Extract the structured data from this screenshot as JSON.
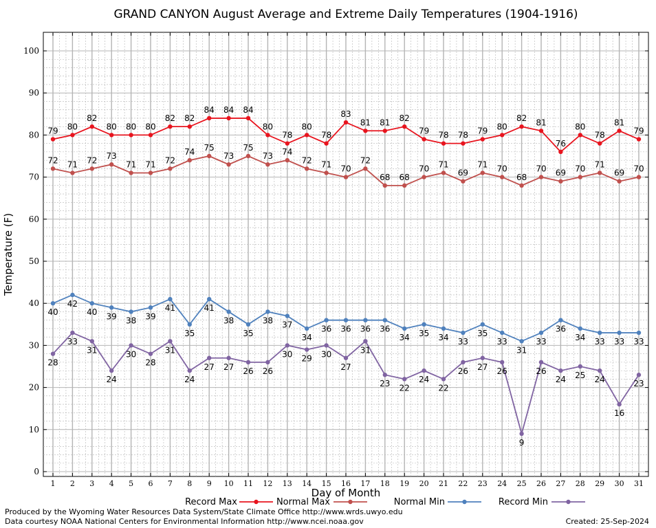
{
  "chart_data": {
    "type": "line",
    "title": "GRAND CANYON August Average and Extreme Daily Temperatures (1904-1916)",
    "xlabel": "Day of Month",
    "ylabel": "Temperature (F)",
    "ylim": [
      0,
      100
    ],
    "xlim": [
      1,
      31
    ],
    "grid": true,
    "legend_position": "bottom",
    "x": [
      1,
      2,
      3,
      4,
      5,
      6,
      7,
      8,
      9,
      10,
      11,
      12,
      13,
      14,
      15,
      16,
      17,
      18,
      19,
      20,
      21,
      22,
      23,
      24,
      25,
      26,
      27,
      28,
      29,
      30,
      31
    ],
    "y_ticks": [
      0,
      10,
      20,
      30,
      40,
      50,
      60,
      70,
      80,
      90,
      100
    ],
    "series": [
      {
        "name": "Record Max",
        "color": "#e8141e",
        "values": [
          79,
          80,
          82,
          80,
          80,
          80,
          82,
          82,
          84,
          84,
          84,
          80,
          78,
          80,
          78,
          83,
          81,
          81,
          82,
          79,
          78,
          78,
          79,
          80,
          82,
          81,
          76,
          80,
          78,
          81,
          79
        ]
      },
      {
        "name": "Normal Max",
        "color": "#c0504d",
        "values": [
          72,
          71,
          72,
          73,
          71,
          71,
          72,
          74,
          75,
          73,
          75,
          73,
          74,
          72,
          71,
          70,
          72,
          68,
          68,
          70,
          71,
          69,
          71,
          70,
          68,
          70,
          69,
          70,
          71,
          69,
          70
        ]
      },
      {
        "name": "Normal Min",
        "color": "#4f81bd",
        "values": [
          40,
          42,
          40,
          39,
          38,
          39,
          41,
          35,
          41,
          38,
          35,
          38,
          37,
          34,
          36,
          36,
          36,
          36,
          34,
          35,
          34,
          33,
          35,
          33,
          31,
          33,
          36,
          34,
          33,
          33,
          33
        ]
      },
      {
        "name": "Record Min",
        "color": "#8064a2",
        "values": [
          28,
          33,
          31,
          24,
          30,
          28,
          31,
          24,
          27,
          27,
          26,
          26,
          30,
          29,
          30,
          27,
          31,
          23,
          22,
          24,
          22,
          26,
          27,
          26,
          9,
          26,
          24,
          25,
          24,
          16,
          23
        ]
      }
    ]
  },
  "footer": {
    "produced_by": "Produced by the Wyoming Water Resources Data System/State Climate Office http://www.wrds.uwyo.edu",
    "data_courtesy": "Data courtesy NOAA National Centers for Environmental Information http://www.ncei.noaa.gov",
    "created": "Created:  25-Sep-2024"
  }
}
